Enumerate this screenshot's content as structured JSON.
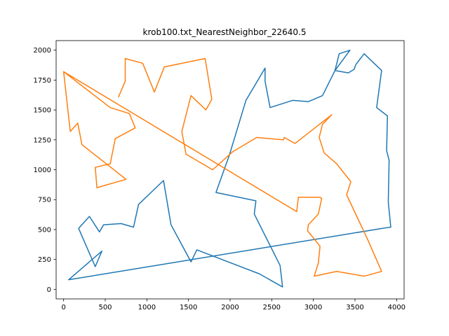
{
  "chart_data": {
    "type": "line",
    "title": "krob100.txt_NearestNeighbor_22640.5",
    "xlabel": "",
    "ylabel": "",
    "xlim": [
      -90,
      4090
    ],
    "ylim": [
      -80,
      2080
    ],
    "xticks": [
      0,
      500,
      1000,
      1500,
      2000,
      2500,
      3000,
      3500,
      4000
    ],
    "yticks": [
      0,
      250,
      500,
      750,
      1000,
      1250,
      1500,
      1750,
      2000
    ],
    "grid": false,
    "legend": "none",
    "colors": {
      "series_1": "#1f77b4",
      "series_2": "#ff7f0e"
    },
    "series": [
      {
        "name": "series_1",
        "points": [
          [
            3830,
            510
          ],
          [
            3930,
            520
          ],
          [
            3900,
            730
          ],
          [
            3910,
            1080
          ],
          [
            3880,
            1160
          ],
          [
            3890,
            1450
          ],
          [
            3760,
            1520
          ],
          [
            3820,
            1830
          ],
          [
            3610,
            1970
          ],
          [
            3510,
            1880
          ],
          [
            3490,
            1840
          ],
          [
            3420,
            1810
          ],
          [
            3260,
            1830
          ],
          [
            3310,
            1970
          ],
          [
            3440,
            2000
          ],
          [
            3260,
            1830
          ],
          [
            3110,
            1620
          ],
          [
            2940,
            1570
          ],
          [
            2750,
            1580
          ],
          [
            2480,
            1520
          ],
          [
            2420,
            1740
          ],
          [
            2420,
            1850
          ],
          [
            2190,
            1580
          ],
          [
            1990,
            1120
          ],
          [
            1830,
            810
          ],
          [
            2310,
            740
          ],
          [
            2290,
            630
          ],
          [
            2600,
            200
          ],
          [
            2630,
            20
          ],
          [
            2350,
            130
          ],
          [
            1600,
            330
          ],
          [
            1530,
            230
          ],
          [
            1290,
            540
          ],
          [
            1200,
            910
          ],
          [
            900,
            710
          ],
          [
            840,
            520
          ],
          [
            690,
            550
          ],
          [
            480,
            540
          ],
          [
            430,
            480
          ],
          [
            310,
            610
          ],
          [
            180,
            510
          ],
          [
            380,
            190
          ],
          [
            460,
            320
          ],
          [
            60,
            80
          ],
          [
            3830,
            510
          ]
        ]
      },
      {
        "name": "series_2",
        "points": [
          [
            0,
            1820
          ],
          [
            560,
            1520
          ],
          [
            790,
            1470
          ],
          [
            860,
            1350
          ],
          [
            620,
            1260
          ],
          [
            560,
            1050
          ],
          [
            380,
            1020
          ],
          [
            400,
            850
          ],
          [
            750,
            920
          ],
          [
            220,
            1210
          ],
          [
            170,
            1390
          ],
          [
            80,
            1320
          ],
          [
            0,
            1820
          ],
          [
            2800,
            650
          ],
          [
            2820,
            770
          ],
          [
            3080,
            770
          ],
          [
            3100,
            760
          ],
          [
            3060,
            630
          ],
          [
            2940,
            540
          ],
          [
            2930,
            490
          ],
          [
            3080,
            360
          ],
          [
            3060,
            220
          ],
          [
            3010,
            110
          ],
          [
            3280,
            150
          ],
          [
            3610,
            110
          ],
          [
            3820,
            150
          ],
          [
            3650,
            420
          ],
          [
            3400,
            790
          ],
          [
            3450,
            900
          ],
          [
            3280,
            1050
          ],
          [
            3130,
            1140
          ],
          [
            3070,
            1270
          ],
          [
            3110,
            1380
          ],
          [
            3220,
            1460
          ],
          [
            2780,
            1220
          ],
          [
            2650,
            1270
          ],
          [
            2640,
            1250
          ],
          [
            2320,
            1270
          ],
          [
            2030,
            1150
          ],
          [
            1790,
            1000
          ],
          [
            1470,
            1130
          ],
          [
            1420,
            1320
          ],
          [
            1530,
            1620
          ],
          [
            1710,
            1500
          ],
          [
            1780,
            1590
          ],
          [
            1700,
            1930
          ],
          [
            1210,
            1860
          ],
          [
            1090,
            1650
          ],
          [
            950,
            1890
          ],
          [
            740,
            1930
          ],
          [
            740,
            1740
          ],
          [
            660,
            1610
          ]
        ]
      }
    ]
  }
}
